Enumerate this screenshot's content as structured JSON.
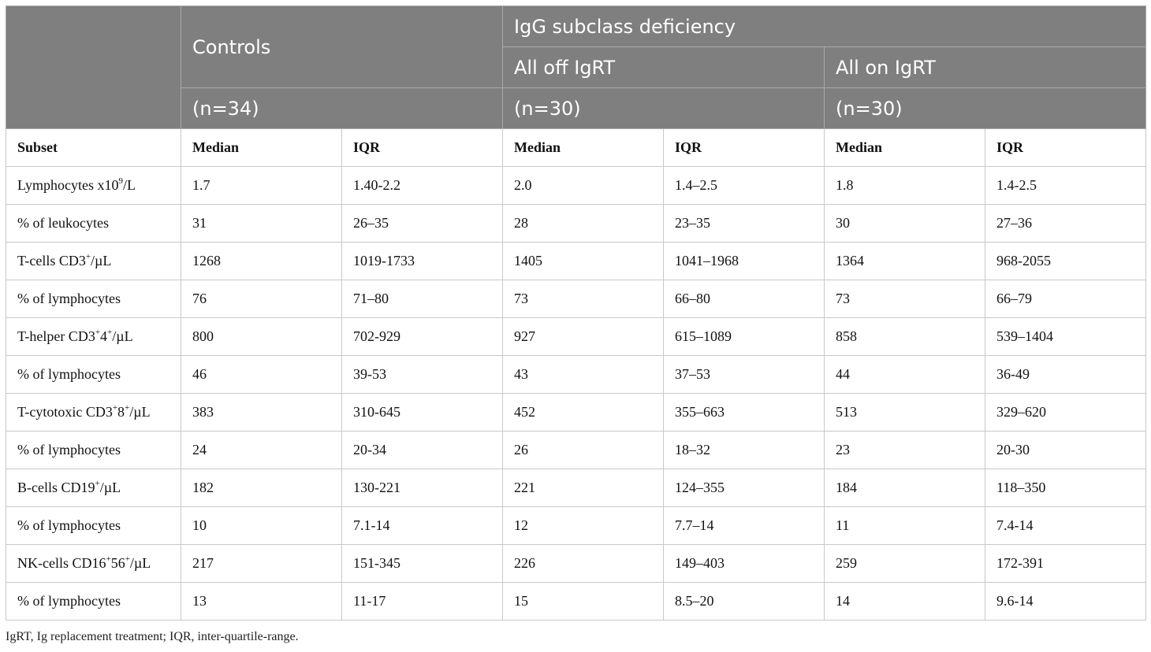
{
  "header": {
    "controls": "Controls",
    "group": "IgG subclass deficiency",
    "off": "All off IgRT",
    "on": "All on IgRT",
    "n_controls": "(n=34)",
    "n_off": "(n=30)",
    "n_on": "(n=30)"
  },
  "columns": [
    "Subset",
    "Median",
    "IQR",
    "Median",
    "IQR",
    "Median",
    "IQR"
  ],
  "rows": [
    {
      "label": "Lymphocytes x10",
      "sup1": "9",
      "mid": "/L",
      "sup2": "",
      "tail": "",
      "values": [
        "1.7",
        "1.40-2.2",
        "2.0",
        "1.4–2.5",
        "1.8",
        "1.4-2.5"
      ]
    },
    {
      "label": "% of leukocytes",
      "sup1": "",
      "mid": "",
      "sup2": "",
      "tail": "",
      "values": [
        "31",
        "26–35",
        "28",
        "23–35",
        "30",
        "27–36"
      ]
    },
    {
      "label": "T-cells CD3",
      "sup1": "+",
      "mid": "/µL",
      "sup2": "",
      "tail": "",
      "values": [
        "1268",
        "1019-1733",
        "1405",
        "1041–1968",
        "1364",
        "968-2055"
      ]
    },
    {
      "label": "% of lymphocytes",
      "sup1": "",
      "mid": "",
      "sup2": "",
      "tail": "",
      "values": [
        "76",
        "71–80",
        "73",
        "66–80",
        "73",
        "66–79"
      ]
    },
    {
      "label": "T-helper CD3",
      "sup1": "+",
      "mid": "4",
      "sup2": "+",
      "tail": "/µL",
      "values": [
        "800",
        "702-929",
        "927",
        "615–1089",
        "858",
        "539–1404"
      ]
    },
    {
      "label": "% of lymphocytes",
      "sup1": "",
      "mid": "",
      "sup2": "",
      "tail": "",
      "values": [
        "46",
        "39-53",
        "43",
        "37–53",
        "44",
        "36-49"
      ]
    },
    {
      "label": "T-cytotoxic CD3",
      "sup1": "+",
      "mid": "8",
      "sup2": "+",
      "tail": "/µL",
      "values": [
        "383",
        "310-645",
        "452",
        "355–663",
        "513",
        "329–620"
      ]
    },
    {
      "label": "% of lymphocytes",
      "sup1": "",
      "mid": "",
      "sup2": "",
      "tail": "",
      "values": [
        "24",
        "20-34",
        "26",
        "18–32",
        "23",
        "20-30"
      ]
    },
    {
      "label": "B-cells CD19",
      "sup1": "+",
      "mid": "/µL",
      "sup2": "",
      "tail": "",
      "values": [
        "182",
        "130-221",
        "221",
        "124–355",
        "184",
        "118–350"
      ]
    },
    {
      "label": "% of lymphocytes",
      "sup1": "",
      "mid": "",
      "sup2": "",
      "tail": "",
      "values": [
        "10",
        "7.1-14",
        "12",
        "7.7–14",
        "11",
        "7.4-14"
      ]
    },
    {
      "label": "NK-cells CD16",
      "sup1": "+",
      "mid": "56",
      "sup2": "+",
      "tail": "/µL",
      "values": [
        "217",
        "151-345",
        "226",
        "149–403",
        "259",
        "172-391"
      ]
    },
    {
      "label": "% of lymphocytes",
      "sup1": "",
      "mid": "",
      "sup2": "",
      "tail": "",
      "values": [
        "13",
        "11-17",
        "15",
        "8.5–20",
        "14",
        "9.6-14"
      ]
    }
  ],
  "footnote": "IgRT, Ig replacement treatment; IQR, inter-quartile-range."
}
